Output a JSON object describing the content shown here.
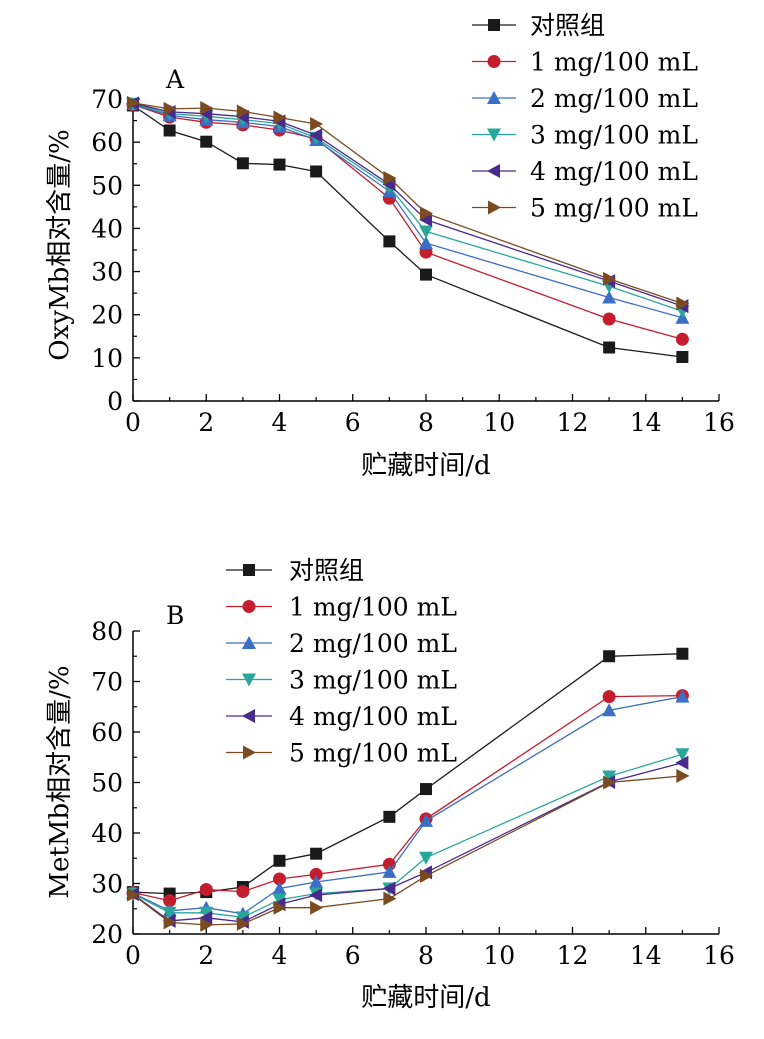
{
  "chart_data": [
    {
      "type": "line",
      "panel_label": "A",
      "xlabel": "贮藏时间/d",
      "ylabel": "OxyMb相对含量/%",
      "xlim": [
        0,
        16
      ],
      "ylim": [
        0,
        70
      ],
      "xticks": [
        "0",
        "2",
        "4",
        "6",
        "8",
        "10",
        "12",
        "14",
        "16"
      ],
      "yticks": [
        "0",
        "10",
        "20",
        "30",
        "40",
        "50",
        "60",
        "70"
      ],
      "legend_position": "top-right",
      "x": [
        0,
        1,
        2,
        3,
        4,
        5,
        7,
        8,
        13,
        15
      ],
      "series": [
        {
          "name": "对照组",
          "color": "#1a1a1a",
          "marker": "square",
          "values": [
            68.5,
            62.7,
            60.1,
            55.1,
            54.8,
            53.2,
            37.0,
            29.3,
            12.4,
            10.2
          ]
        },
        {
          "name": "1 mg/100 mL",
          "color": "#c41e2e",
          "marker": "circle",
          "values": [
            68.7,
            65.8,
            64.6,
            64.0,
            62.8,
            60.8,
            47.0,
            34.5,
            19.0,
            14.3
          ]
        },
        {
          "name": "2 mg/100 mL",
          "color": "#3a6fc4",
          "marker": "triangle-up",
          "values": [
            68.8,
            66.2,
            65.2,
            64.6,
            63.6,
            60.5,
            48.6,
            36.6,
            24.0,
            19.3
          ]
        },
        {
          "name": "3 mg/100 mL",
          "color": "#2aa79b",
          "marker": "triangle-down",
          "values": [
            68.9,
            66.6,
            66.0,
            65.2,
            64.3,
            61.0,
            49.6,
            39.3,
            26.6,
            20.8
          ]
        },
        {
          "name": "4 mg/100 mL",
          "color": "#4a2a8c",
          "marker": "triangle-left",
          "values": [
            69.0,
            67.0,
            66.6,
            65.9,
            64.8,
            61.6,
            50.2,
            42.0,
            27.8,
            22.0
          ]
        },
        {
          "name": "5 mg/100 mL",
          "color": "#7a4a20",
          "marker": "triangle-right",
          "values": [
            69.1,
            67.7,
            67.9,
            67.1,
            65.7,
            64.2,
            51.7,
            43.5,
            28.3,
            22.6
          ]
        }
      ]
    },
    {
      "type": "line",
      "panel_label": "B",
      "xlabel": "贮藏时间/d",
      "ylabel": "MetMb相对含量/%",
      "xlim": [
        0,
        16
      ],
      "ylim": [
        20,
        80
      ],
      "xticks": [
        "0",
        "2",
        "4",
        "6",
        "8",
        "10",
        "12",
        "14",
        "16"
      ],
      "yticks": [
        "20",
        "30",
        "40",
        "50",
        "60",
        "70",
        "80"
      ],
      "legend_position": "top-left",
      "x": [
        0,
        1,
        2,
        3,
        4,
        5,
        7,
        8,
        13,
        15
      ],
      "series": [
        {
          "name": "对照组",
          "color": "#1a1a1a",
          "marker": "square",
          "values": [
            28.3,
            28.0,
            28.3,
            29.3,
            34.5,
            35.9,
            43.2,
            48.7,
            75.0,
            75.5
          ]
        },
        {
          "name": "1 mg/100 mL",
          "color": "#c41e2e",
          "marker": "circle",
          "values": [
            28.2,
            26.6,
            28.8,
            28.4,
            30.9,
            31.8,
            33.8,
            42.8,
            67.0,
            67.2
          ]
        },
        {
          "name": "2 mg/100 mL",
          "color": "#3a6fc4",
          "marker": "triangle-up",
          "values": [
            28.1,
            24.6,
            25.2,
            24.0,
            29.0,
            30.3,
            32.3,
            42.4,
            64.3,
            67.0
          ]
        },
        {
          "name": "3 mg/100 mL",
          "color": "#2aa79b",
          "marker": "triangle-down",
          "values": [
            28.0,
            24.2,
            24.2,
            23.3,
            26.8,
            28.0,
            29.0,
            35.1,
            51.2,
            55.6
          ]
        },
        {
          "name": "4 mg/100 mL",
          "color": "#4a2a8c",
          "marker": "triangle-left",
          "values": [
            27.9,
            22.6,
            23.2,
            22.4,
            25.9,
            27.7,
            29.0,
            32.2,
            50.1,
            53.9
          ]
        },
        {
          "name": "5 mg/100 mL",
          "color": "#7a4a20",
          "marker": "triangle-right",
          "values": [
            27.8,
            22.3,
            21.8,
            22.0,
            25.2,
            25.2,
            27.0,
            31.5,
            50.0,
            51.3
          ]
        }
      ]
    }
  ]
}
